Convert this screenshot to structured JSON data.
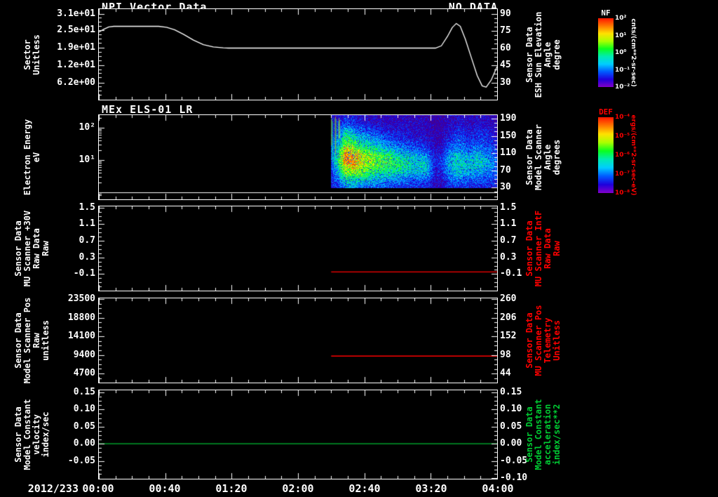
{
  "chart_data": {
    "time_axis": {
      "date_label": "2012/233",
      "range_h": [
        0,
        4
      ],
      "minor_step_min": 10,
      "ticks": [
        {
          "label": "00:00",
          "h": 0.0
        },
        {
          "label": "00:40",
          "h": 0.6667
        },
        {
          "label": "01:20",
          "h": 1.3333
        },
        {
          "label": "02:00",
          "h": 2.0
        },
        {
          "label": "02:40",
          "h": 2.6667
        },
        {
          "label": "03:20",
          "h": 3.3333
        },
        {
          "label": "04:00",
          "h": 4.0
        }
      ]
    },
    "panels": [
      {
        "id": "npi-vector",
        "type": "line",
        "title": "NPI Vector Data",
        "no_data": "NO DATA",
        "left_axis": {
          "scale": "linear",
          "range": [
            0,
            32.65
          ],
          "color": "#ffffff",
          "label_lines": [
            "Sector",
            "Unitless"
          ],
          "ticks": [
            {
              "label": "3.1e+01",
              "at": 31.0
            },
            {
              "label": "2.5e+01",
              "at": 25.0
            },
            {
              "label": "1.9e+01",
              "at": 18.8
            },
            {
              "label": "1.2e+01",
              "at": 12.5
            },
            {
              "label": "6.2e+00",
              "at": 6.2
            }
          ]
        },
        "right_axis": {
          "scale": "linear",
          "range": [
            15,
            94
          ],
          "color": "#ffffff",
          "label_lines": [
            "Sensor Data",
            "ESH Sun Elevation",
            "Angle",
            "degree"
          ],
          "ticks": [
            {
              "label": "90",
              "at": 90
            },
            {
              "label": "75",
              "at": 75
            },
            {
              "label": "60",
              "at": 60
            },
            {
              "label": "45",
              "at": 45
            },
            {
              "label": "30",
              "at": 30
            }
          ]
        },
        "series": [
          {
            "name": "ESH Sun Elevation Angle",
            "color": "#ffffff",
            "axis": "right",
            "points": [
              [
                0.0,
                74
              ],
              [
                0.05,
                76.5
              ],
              [
                0.1,
                78.5
              ],
              [
                0.15,
                79
              ],
              [
                0.6,
                79
              ],
              [
                0.68,
                78.2
              ],
              [
                0.76,
                76
              ],
              [
                0.85,
                72
              ],
              [
                0.95,
                67
              ],
              [
                1.05,
                63
              ],
              [
                1.15,
                61
              ],
              [
                1.25,
                60.2
              ],
              [
                1.3,
                60
              ],
              [
                3.38,
                60
              ],
              [
                3.44,
                62
              ],
              [
                3.5,
                70
              ],
              [
                3.55,
                78
              ],
              [
                3.59,
                81.5
              ],
              [
                3.63,
                79
              ],
              [
                3.68,
                68
              ],
              [
                3.74,
                52
              ],
              [
                3.8,
                36
              ],
              [
                3.85,
                27
              ],
              [
                3.89,
                26
              ],
              [
                3.94,
                32
              ],
              [
                4.0,
                44
              ]
            ]
          }
        ]
      },
      {
        "id": "mex-els",
        "type": "spectrogram",
        "title": "MEx ELS-01 LR",
        "left_axis": {
          "scale": "log",
          "range": [
            0.6,
            243
          ],
          "color": "#ffffff",
          "label_lines": [
            "Electron Energy",
            "eV"
          ],
          "ticks": [
            {
              "label": "10²",
              "at": 100
            },
            {
              "label": "10¹",
              "at": 10
            }
          ]
        },
        "right_axis": {
          "scale": "linear",
          "range": [
            2.8,
            198
          ],
          "color": "#ffffff",
          "label_lines": [
            "Sensor Data",
            "Model Scanner",
            "Angle",
            "degrees"
          ],
          "ticks": [
            {
              "label": "190",
              "at": 190
            },
            {
              "label": "150",
              "at": 150
            },
            {
              "label": "110",
              "at": 110
            },
            {
              "label": "70",
              "at": 70
            },
            {
              "label": "30",
              "at": 30
            }
          ]
        },
        "white_line_ev": 1.0,
        "spectrogram": {
          "time_range_h": [
            2.333,
            4.0
          ],
          "energy_range_ev": [
            1.3,
            243
          ],
          "bottom_frac": 0.87,
          "row_energies_ev": [
            187,
            111,
            66,
            39,
            23,
            14,
            8.1,
            4.8,
            2.9,
            1.7
          ],
          "grid": [
            [
              0.08,
              0.12,
              0.18,
              0.15,
              0.12,
              0.1,
              0.1,
              0.1,
              0.08,
              0.08,
              0.08,
              0.08,
              0.08,
              0.08,
              0.08,
              0.05,
              0.05,
              0.08,
              0.12,
              0.1,
              0.08,
              0.12,
              0.1,
              0.08,
              0.08
            ],
            [
              0.1,
              0.18,
              0.28,
              0.24,
              0.2,
              0.16,
              0.14,
              0.12,
              0.1,
              0.1,
              0.1,
              0.1,
              0.1,
              0.1,
              0.08,
              0.05,
              0.06,
              0.1,
              0.14,
              0.14,
              0.1,
              0.14,
              0.13,
              0.1,
              0.08
            ],
            [
              0.14,
              0.28,
              0.48,
              0.44,
              0.34,
              0.3,
              0.26,
              0.22,
              0.2,
              0.16,
              0.15,
              0.14,
              0.12,
              0.11,
              0.1,
              0.06,
              0.08,
              0.14,
              0.2,
              0.19,
              0.15,
              0.2,
              0.18,
              0.14,
              0.1
            ],
            [
              0.18,
              0.38,
              0.62,
              0.58,
              0.5,
              0.44,
              0.4,
              0.34,
              0.3,
              0.26,
              0.22,
              0.2,
              0.18,
              0.16,
              0.14,
              0.08,
              0.1,
              0.2,
              0.26,
              0.25,
              0.2,
              0.25,
              0.24,
              0.2,
              0.14
            ],
            [
              0.24,
              0.48,
              0.78,
              0.74,
              0.64,
              0.58,
              0.54,
              0.5,
              0.44,
              0.4,
              0.35,
              0.32,
              0.3,
              0.26,
              0.22,
              0.1,
              0.14,
              0.3,
              0.35,
              0.34,
              0.3,
              0.34,
              0.3,
              0.28,
              0.2
            ],
            [
              0.28,
              0.58,
              0.95,
              0.9,
              0.84,
              0.76,
              0.7,
              0.66,
              0.6,
              0.56,
              0.5,
              0.46,
              0.44,
              0.4,
              0.34,
              0.14,
              0.2,
              0.4,
              0.46,
              0.44,
              0.4,
              0.44,
              0.4,
              0.35,
              0.28
            ],
            [
              0.28,
              0.55,
              0.86,
              0.9,
              0.8,
              0.75,
              0.7,
              0.66,
              0.64,
              0.6,
              0.58,
              0.54,
              0.5,
              0.48,
              0.44,
              0.18,
              0.24,
              0.44,
              0.5,
              0.48,
              0.45,
              0.48,
              0.45,
              0.4,
              0.33
            ],
            [
              0.24,
              0.44,
              0.7,
              0.74,
              0.7,
              0.65,
              0.6,
              0.58,
              0.55,
              0.53,
              0.5,
              0.48,
              0.45,
              0.44,
              0.4,
              0.18,
              0.2,
              0.38,
              0.44,
              0.43,
              0.4,
              0.4,
              0.38,
              0.34,
              0.28
            ],
            [
              0.18,
              0.34,
              0.5,
              0.54,
              0.5,
              0.46,
              0.44,
              0.4,
              0.38,
              0.35,
              0.33,
              0.3,
              0.3,
              0.28,
              0.28,
              0.13,
              0.15,
              0.28,
              0.33,
              0.3,
              0.28,
              0.28,
              0.28,
              0.24,
              0.2
            ],
            [
              0.13,
              0.24,
              0.34,
              0.38,
              0.34,
              0.3,
              0.28,
              0.28,
              0.25,
              0.24,
              0.23,
              0.2,
              0.2,
              0.19,
              0.18,
              0.09,
              0.1,
              0.19,
              0.23,
              0.2,
              0.18,
              0.18,
              0.18,
              0.17,
              0.13
            ]
          ]
        }
      },
      {
        "id": "mu-scanner-30v",
        "type": "line",
        "left_axis": {
          "scale": "linear",
          "range": [
            -0.5,
            1.53
          ],
          "color": "#ffffff",
          "label_lines": [
            "Sensor Data",
            "MU Scanner +30V",
            "Raw Data",
            "Raw"
          ],
          "ticks": [
            {
              "label": "1.5",
              "at": 1.5
            },
            {
              "label": "1.1",
              "at": 1.1
            },
            {
              "label": "0.7",
              "at": 0.7
            },
            {
              "label": "0.3",
              "at": 0.3
            },
            {
              "label": "-0.1",
              "at": -0.1
            }
          ]
        },
        "right_axis": {
          "scale": "linear",
          "range": [
            -0.5,
            1.53
          ],
          "color": "#ff0000",
          "label_lines": [
            "Sensor Data",
            "MU Scanner IntF",
            "Raw Data",
            "Raw"
          ],
          "ticks": [
            {
              "label": "1.5",
              "at": 1.5
            },
            {
              "label": "1.1",
              "at": 1.1
            },
            {
              "label": "0.7",
              "at": 0.7
            },
            {
              "label": "0.3",
              "at": 0.3
            },
            {
              "label": "-0.1",
              "at": -0.1
            }
          ]
        },
        "series": [
          {
            "name": "MU Scanner IntF Raw",
            "color": "#ff0000",
            "axis": "left",
            "points": [
              [
                2.333,
                -0.05
              ],
              [
                4.0,
                -0.05
              ]
            ]
          }
        ]
      },
      {
        "id": "model-scanner-pos",
        "type": "line",
        "left_axis": {
          "scale": "linear",
          "range": [
            2400,
            23700
          ],
          "color": "#ffffff",
          "label_lines": [
            "Sensor Data",
            "Model Scanner Pos",
            "Raw",
            "unitless"
          ],
          "ticks": [
            {
              "label": "23500",
              "at": 23500
            },
            {
              "label": "18800",
              "at": 18800
            },
            {
              "label": "14100",
              "at": 14100
            },
            {
              "label": "9400",
              "at": 9400
            },
            {
              "label": "4700",
              "at": 4700
            }
          ]
        },
        "right_axis": {
          "scale": "linear",
          "range": [
            18,
            262
          ],
          "color": "#ff0000",
          "label_lines": [
            "Sensor Data",
            "MU Scanner Pos",
            "Telemetry",
            "Unitless"
          ],
          "ticks": [
            {
              "label": "260",
              "at": 260
            },
            {
              "label": "206",
              "at": 206
            },
            {
              "label": "152",
              "at": 152
            },
            {
              "label": "98",
              "at": 98
            },
            {
              "label": "44",
              "at": 44
            }
          ]
        },
        "series": [
          {
            "name": "MU Scanner Pos Telemetry",
            "color": "#ff0000",
            "axis": "left",
            "points": [
              [
                2.333,
                9100
              ],
              [
                4.0,
                9100
              ]
            ]
          }
        ]
      },
      {
        "id": "model-constant",
        "type": "line",
        "left_axis": {
          "scale": "linear",
          "range": [
            -0.102,
            0.156
          ],
          "color": "#ffffff",
          "label_lines": [
            "Sensor Data",
            "Model Constant",
            "velocity",
            "index/sec"
          ],
          "ticks": [
            {
              "label": "0.15",
              "at": 0.15
            },
            {
              "label": "0.10",
              "at": 0.1
            },
            {
              "label": "0.05",
              "at": 0.05
            },
            {
              "label": "0.00",
              "at": 0.0
            },
            {
              "label": "-0.05",
              "at": -0.05
            }
          ]
        },
        "right_axis": {
          "scale": "linear",
          "range": [
            -0.102,
            0.156
          ],
          "color": "#00cc33",
          "label_lines": [
            "Sensor Data",
            "Model Constant",
            "acceleration",
            "index/sec**2"
          ],
          "ticks": [
            {
              "label": "0.15",
              "at": 0.15
            },
            {
              "label": "0.10",
              "at": 0.1
            },
            {
              "label": "0.05",
              "at": 0.05
            },
            {
              "label": "0.00",
              "at": 0.0
            },
            {
              "label": "-0.05",
              "at": -0.05
            },
            {
              "label": "-0.10",
              "at": -0.1
            }
          ]
        },
        "series": [
          {
            "name": "Model Constant acceleration",
            "color": "#00bb33",
            "axis": "left",
            "points": [
              [
                0.0,
                0.0
              ],
              [
                4.0,
                0.0
              ]
            ]
          }
        ]
      }
    ],
    "colorbars": [
      {
        "title": "NF",
        "title_color": "#ffffff",
        "tick_color": "#ffffff",
        "unit": "cnts/(cm**2-sr-sec)",
        "unit_color": "#ffffff",
        "ticks": [
          "10²",
          "10¹",
          "10⁰",
          "10⁻¹",
          "10⁻²"
        ]
      },
      {
        "title": "DEF",
        "title_color": "#ff0000",
        "tick_color": "#ff0000",
        "unit": "ergs/(cm**2-sr-sec-eV)",
        "unit_color": "#ff0000",
        "ticks": [
          "10⁻⁴",
          "10⁻⁵",
          "10⁻⁶",
          "10⁻⁷",
          "10⁻⁸"
        ]
      }
    ]
  }
}
